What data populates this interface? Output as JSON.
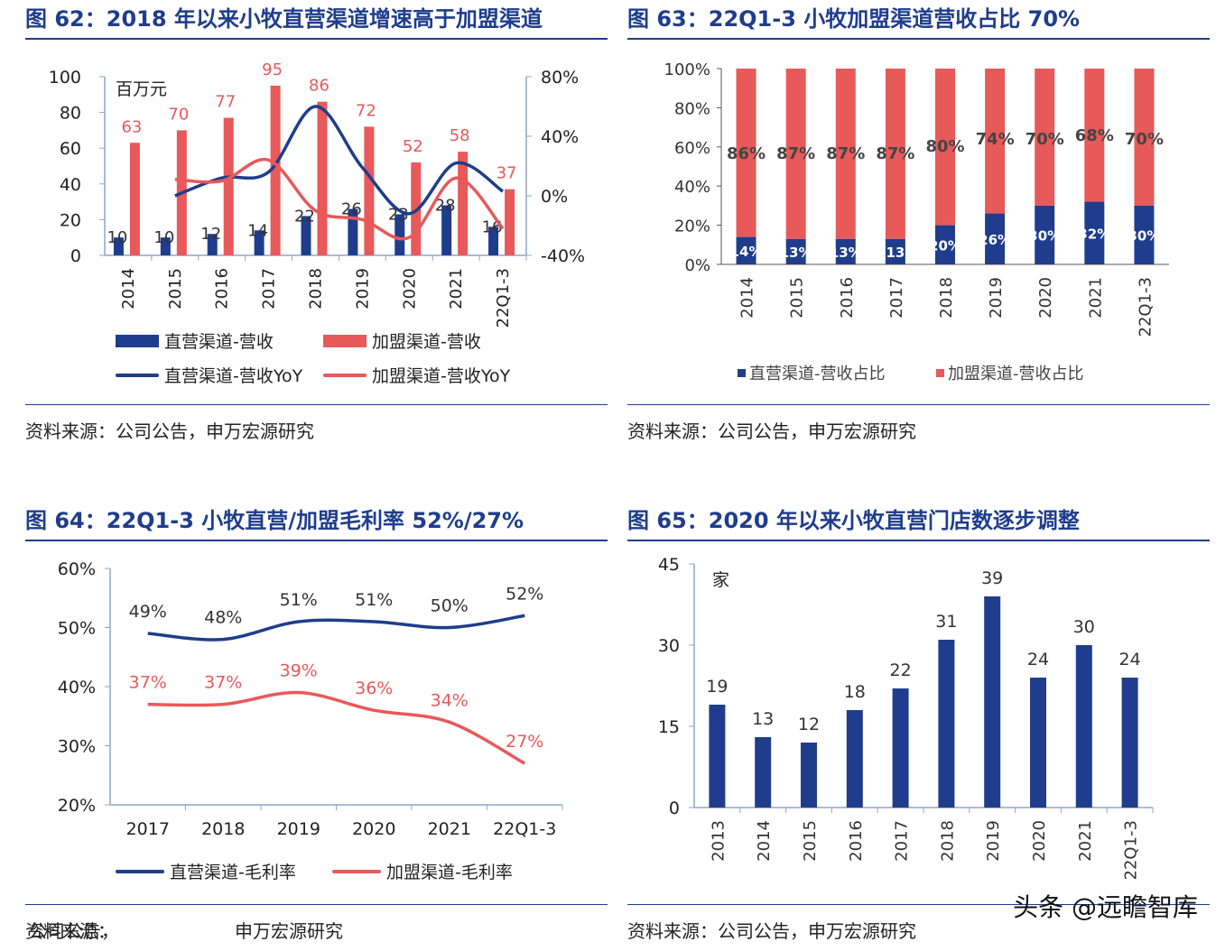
{
  "colors": {
    "title": "#1f3d8c",
    "navy": "#1f3d8c",
    "red": "#e8595a",
    "axis": "#8ea6c9"
  },
  "panels": {
    "fig62": {
      "title": "图 62：2018 年以来小牧直营渠道增速高于加盟渠道",
      "source": "资料来源：公司公告，申万宏源研究",
      "unit": "百万元",
      "legend": {
        "bar1": "直营渠道-营收",
        "bar2": "加盟渠道-营收",
        "line1": "直营渠道-营收YoY",
        "line2": "加盟渠道-营收YoY"
      }
    },
    "fig63": {
      "title": "图 63：22Q1-3 小牧加盟渠道营收占比 70%",
      "source": "资料来源：公司公告，申万宏源研究",
      "legend": {
        "s1": "直营渠道-营收占比",
        "s2": "加盟渠道-营收占比"
      }
    },
    "fig64": {
      "title": "图 64：22Q1-3 小牧直营/加盟毛利率 52%/27%",
      "source_a": "资料来源：",
      "source_b": "公司公告，",
      "source_c": "申万宏源研究",
      "legend": {
        "l1": "直营渠道-毛利率",
        "l2": "加盟渠道-毛利率"
      }
    },
    "fig65": {
      "title": "图 65：2020 年以来小牧直营门店数逐步调整",
      "source": "资料来源：公司公告，申万宏源研究",
      "unit": "家"
    }
  },
  "watermark": "头条 @远瞻智库",
  "chart_data": [
    {
      "type": "bar",
      "categories": [
        "2014",
        "2015",
        "2016",
        "2017",
        "2018",
        "2019",
        "2020",
        "2021",
        "22Q1-3"
      ],
      "series": [
        {
          "name": "直营渠道-营收",
          "values": [
            10,
            10,
            12,
            14,
            22,
            26,
            23,
            28,
            16
          ]
        },
        {
          "name": "加盟渠道-营收",
          "values": [
            63,
            70,
            77,
            95,
            86,
            72,
            52,
            58,
            37
          ]
        },
        {
          "name": "直营渠道-营收YoY",
          "values": [
            null,
            0,
            12,
            16,
            60,
            19,
            -12,
            22,
            3
          ]
        },
        {
          "name": "加盟渠道-营收YoY",
          "values": [
            null,
            11,
            10,
            24,
            -10,
            -16,
            -28,
            12,
            -22
          ]
        }
      ],
      "ylim": [
        0,
        100
      ],
      "y2lim": [
        -40,
        80
      ],
      "yticks": [
        "0",
        "20",
        "40",
        "60",
        "80",
        "100"
      ],
      "y2ticks": [
        "-40%",
        "0%",
        "40%",
        "80%"
      ],
      "ylabel": "百万元"
    },
    {
      "type": "bar",
      "categories": [
        "2014",
        "2015",
        "2016",
        "2017",
        "2018",
        "2019",
        "2020",
        "2021",
        "22Q1-3"
      ],
      "series": [
        {
          "name": "直营渠道-营收占比",
          "values": [
            14,
            13,
            13,
            13,
            20,
            26,
            30,
            32,
            30
          ],
          "labels": [
            "14%",
            "13%",
            "13%",
            "13",
            "20%",
            "26%",
            "30%",
            "32%",
            "30%"
          ]
        },
        {
          "name": "加盟渠道-营收占比",
          "values": [
            86,
            87,
            87,
            87,
            80,
            74,
            70,
            68,
            70
          ],
          "labels": [
            "86%",
            "87%",
            "87%",
            "87%",
            "80%",
            "74%",
            "70%",
            "68%",
            "70%"
          ]
        }
      ],
      "ylim": [
        0,
        100
      ],
      "yticks": [
        "0%",
        "20%",
        "40%",
        "60%",
        "80%",
        "100%"
      ]
    },
    {
      "type": "line",
      "categories": [
        "2017",
        "2018",
        "2019",
        "2020",
        "2021",
        "22Q1-3"
      ],
      "series": [
        {
          "name": "直营渠道-毛利率",
          "values": [
            49,
            48,
            51,
            51,
            50,
            52
          ],
          "labels": [
            "49%",
            "48%",
            "51%",
            "51%",
            "50%",
            "52%"
          ]
        },
        {
          "name": "加盟渠道-毛利率",
          "values": [
            37,
            37,
            39,
            36,
            34,
            27
          ],
          "labels": [
            "37%",
            "37%",
            "39%",
            "36%",
            "34%",
            "27%"
          ]
        }
      ],
      "ylim": [
        20,
        60
      ],
      "yticks": [
        "20%",
        "30%",
        "40%",
        "50%",
        "60%"
      ]
    },
    {
      "type": "bar",
      "categories": [
        "2013",
        "2014",
        "2015",
        "2016",
        "2017",
        "2018",
        "2019",
        "2020",
        "2021",
        "22Q1-3"
      ],
      "values": [
        19,
        13,
        12,
        18,
        22,
        31,
        39,
        24,
        30,
        24
      ],
      "ylim": [
        0,
        45
      ],
      "yticks": [
        "0",
        "15",
        "30",
        "45"
      ],
      "ylabel": "家"
    }
  ]
}
